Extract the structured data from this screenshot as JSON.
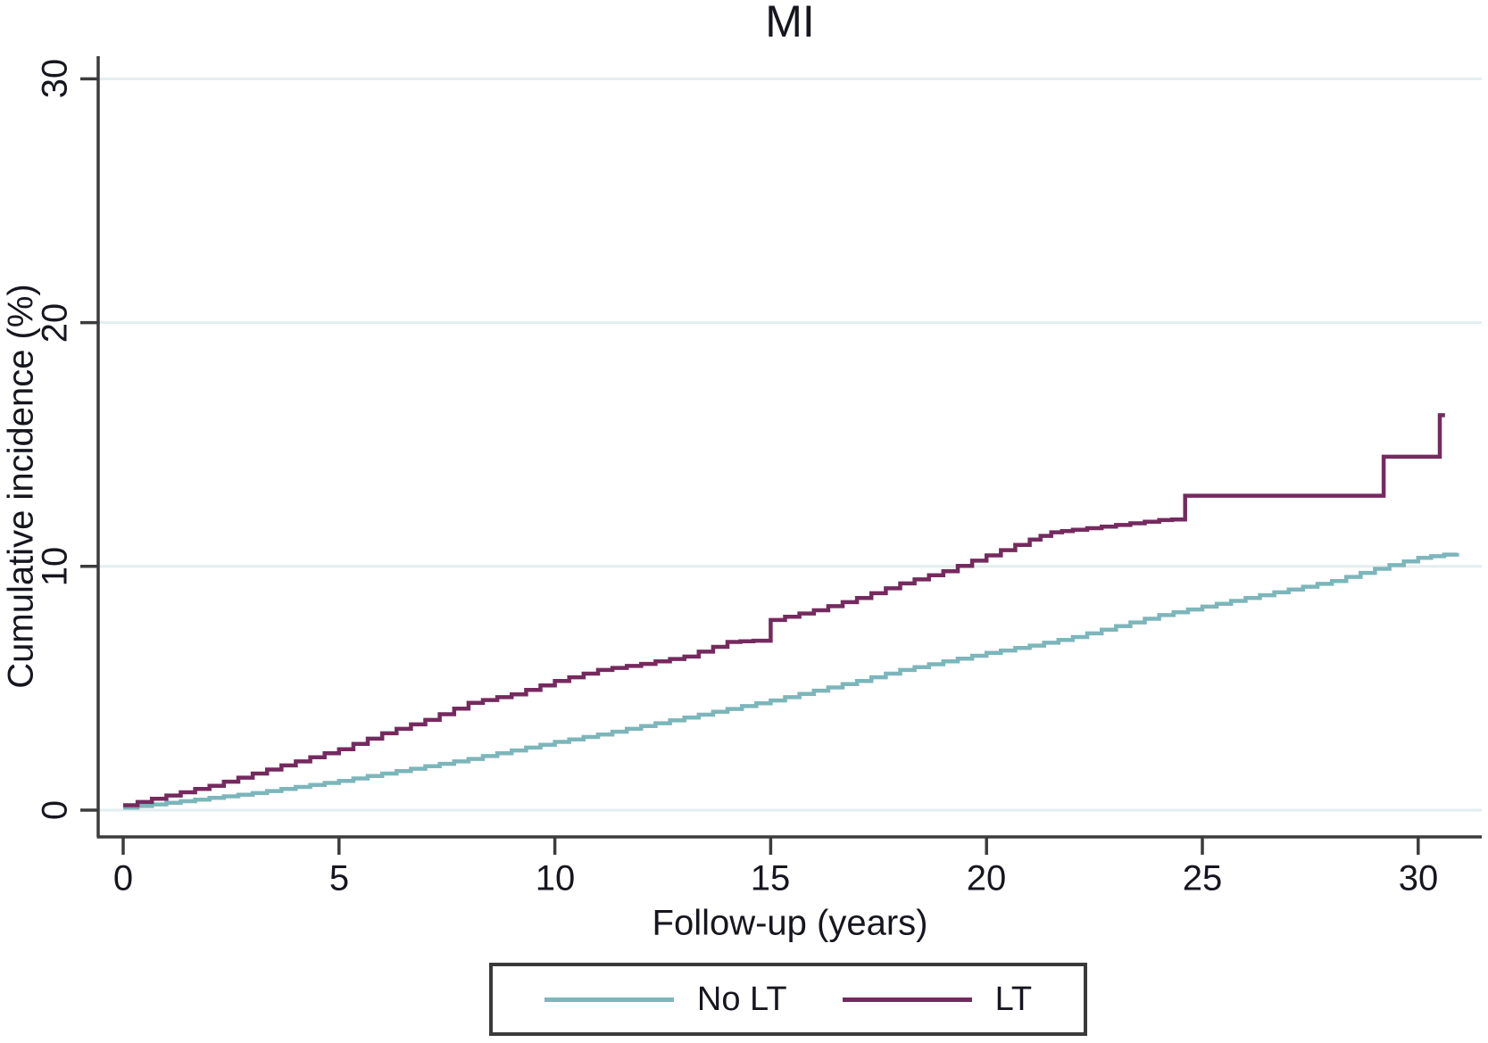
{
  "chart": {
    "title": "MI",
    "x_label": "Follow-up (years)",
    "y_label": "Cumulative incidence (%)"
  },
  "legend": {
    "items": [
      {
        "label": "No LT",
        "color": "#7cb6bb"
      },
      {
        "label": "LT",
        "color": "#752a5f"
      }
    ]
  },
  "colors": {
    "axis": "#3c3c3c",
    "gridline": "#e3eef0",
    "text": "#16161f",
    "no_lt_line": "#7cb6bb",
    "lt_line": "#752a5f",
    "background": "#ffffff"
  },
  "chart_data": {
    "type": "line",
    "curve_style": "step",
    "title": "MI",
    "xlabel": "Follow-up (years)",
    "ylabel": "Cumulative incidence (%)",
    "xlim": [
      0,
      31.6
    ],
    "ylim": [
      0,
      32
    ],
    "x_ticks": [
      0,
      5,
      10,
      15,
      20,
      25,
      30
    ],
    "y_ticks": [
      0,
      10,
      20,
      30
    ],
    "grid": "horizontal gridlines at y ticks",
    "legend_position": "bottom",
    "series": [
      {
        "name": "No LT",
        "color": "#7cb6bb",
        "points": [
          [
            0,
            0.1
          ],
          [
            1,
            0.3
          ],
          [
            2,
            0.5
          ],
          [
            3,
            0.7
          ],
          [
            4,
            0.95
          ],
          [
            5,
            1.2
          ],
          [
            6,
            1.5
          ],
          [
            7,
            1.8
          ],
          [
            8,
            2.1
          ],
          [
            9,
            2.45
          ],
          [
            10,
            2.8
          ],
          [
            11,
            3.1
          ],
          [
            12,
            3.45
          ],
          [
            13,
            3.8
          ],
          [
            14,
            4.15
          ],
          [
            15,
            4.5
          ],
          [
            16,
            4.9
          ],
          [
            17,
            5.3
          ],
          [
            18,
            5.75
          ],
          [
            19,
            6.1
          ],
          [
            20,
            6.45
          ],
          [
            21,
            6.75
          ],
          [
            22,
            7.1
          ],
          [
            23,
            7.55
          ],
          [
            24,
            8.0
          ],
          [
            25,
            8.35
          ],
          [
            26,
            8.7
          ],
          [
            27,
            9.05
          ],
          [
            28,
            9.4
          ],
          [
            29,
            9.9
          ],
          [
            30,
            10.35
          ],
          [
            30.9,
            10.55
          ]
        ]
      },
      {
        "name": "LT",
        "color": "#752a5f",
        "points": [
          [
            0,
            0.2
          ],
          [
            1,
            0.6
          ],
          [
            2,
            1.0
          ],
          [
            3,
            1.5
          ],
          [
            4,
            2.0
          ],
          [
            5,
            2.5
          ],
          [
            6,
            3.15
          ],
          [
            7,
            3.7
          ],
          [
            8,
            4.4
          ],
          [
            9,
            4.75
          ],
          [
            10,
            5.3
          ],
          [
            11,
            5.75
          ],
          [
            12,
            6.0
          ],
          [
            13,
            6.3
          ],
          [
            14,
            6.9
          ],
          [
            14.6,
            6.95
          ],
          [
            15,
            7.8
          ],
          [
            16,
            8.2
          ],
          [
            17,
            8.7
          ],
          [
            18,
            9.3
          ],
          [
            19,
            9.8
          ],
          [
            20,
            10.45
          ],
          [
            21,
            11.1
          ],
          [
            21.5,
            11.4
          ],
          [
            22,
            11.5
          ],
          [
            23,
            11.7
          ],
          [
            24,
            11.9
          ],
          [
            24.6,
            11.95
          ],
          [
            24.6,
            12.9
          ],
          [
            29.2,
            12.9
          ],
          [
            29.2,
            14.5
          ],
          [
            30.5,
            14.5
          ],
          [
            30.5,
            16.2
          ],
          [
            30.62,
            16.2
          ]
        ]
      }
    ]
  }
}
